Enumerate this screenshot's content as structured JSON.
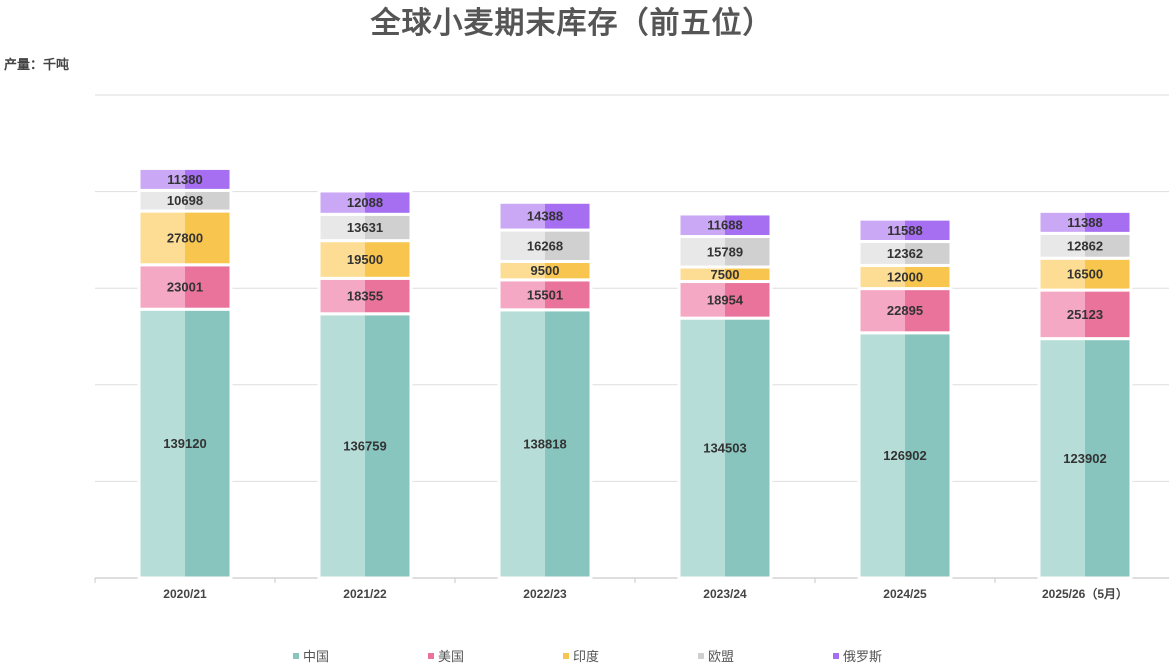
{
  "chart_data": {
    "type": "bar",
    "stacked": true,
    "title": "全球小麦期末库存（前五位）",
    "ylabel": "产量：千吨",
    "categories": [
      "2020/21",
      "2021/22",
      "2022/23",
      "2023/24",
      "2024/25",
      "2025/26（5月）"
    ],
    "series": [
      {
        "name": "中国",
        "values": [
          139120,
          136759,
          138818,
          134503,
          126902,
          123902
        ],
        "color_light": "#b7ddd8",
        "color_dark": "#87c5be"
      },
      {
        "name": "美国",
        "values": [
          23001,
          18355,
          15501,
          18954,
          22895,
          25123
        ],
        "color_light": "#f4a8c3",
        "color_dark": "#e9739b"
      },
      {
        "name": "印度",
        "values": [
          27800,
          19500,
          9500,
          7500,
          12000,
          16500
        ],
        "color_light": "#fcdd93",
        "color_dark": "#f8c54f"
      },
      {
        "name": "欧盟",
        "values": [
          10698,
          13631,
          16268,
          15789,
          12362,
          12862
        ],
        "color_light": "#e8e8e8",
        "color_dark": "#d0d0d0"
      },
      {
        "name": "俄罗斯",
        "values": [
          11380,
          12088,
          14388,
          11688,
          11588,
          11388
        ],
        "color_light": "#cba8f6",
        "color_dark": "#a66ef0"
      }
    ],
    "ylim": [
      0,
      250000
    ],
    "grid": true,
    "show_data_labels": true,
    "legend": "bottom"
  }
}
